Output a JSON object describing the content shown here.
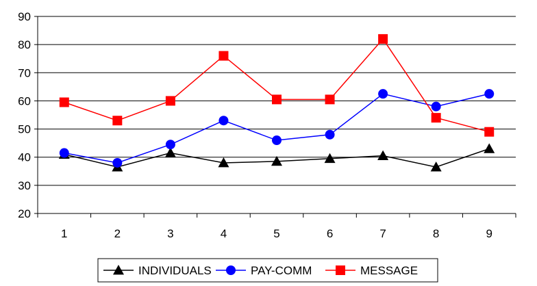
{
  "chart_data": {
    "type": "line",
    "title": "",
    "xlabel": "",
    "ylabel": "",
    "categories": [
      "1",
      "2",
      "3",
      "4",
      "5",
      "6",
      "7",
      "8",
      "9"
    ],
    "ylim": [
      20,
      90
    ],
    "yticks": [
      20,
      30,
      40,
      50,
      60,
      70,
      80,
      90
    ],
    "grid": "horizontal",
    "legend_position": "bottom",
    "series": [
      {
        "name": "INDIVIDUALS",
        "color": "#000000",
        "marker": "triangle",
        "values": [
          41.0,
          36.5,
          41.5,
          38.0,
          38.5,
          39.5,
          40.5,
          36.5,
          43.0
        ]
      },
      {
        "name": "PAY-COMM",
        "color": "#0000ff",
        "marker": "circle",
        "values": [
          41.5,
          38.0,
          44.5,
          53.0,
          46.0,
          48.0,
          62.5,
          58.0,
          62.5
        ]
      },
      {
        "name": "MESSAGE",
        "color": "#ff0000",
        "marker": "square",
        "values": [
          59.5,
          53.0,
          60.0,
          76.0,
          60.5,
          60.5,
          82.0,
          54.0,
          49.0
        ]
      }
    ]
  }
}
